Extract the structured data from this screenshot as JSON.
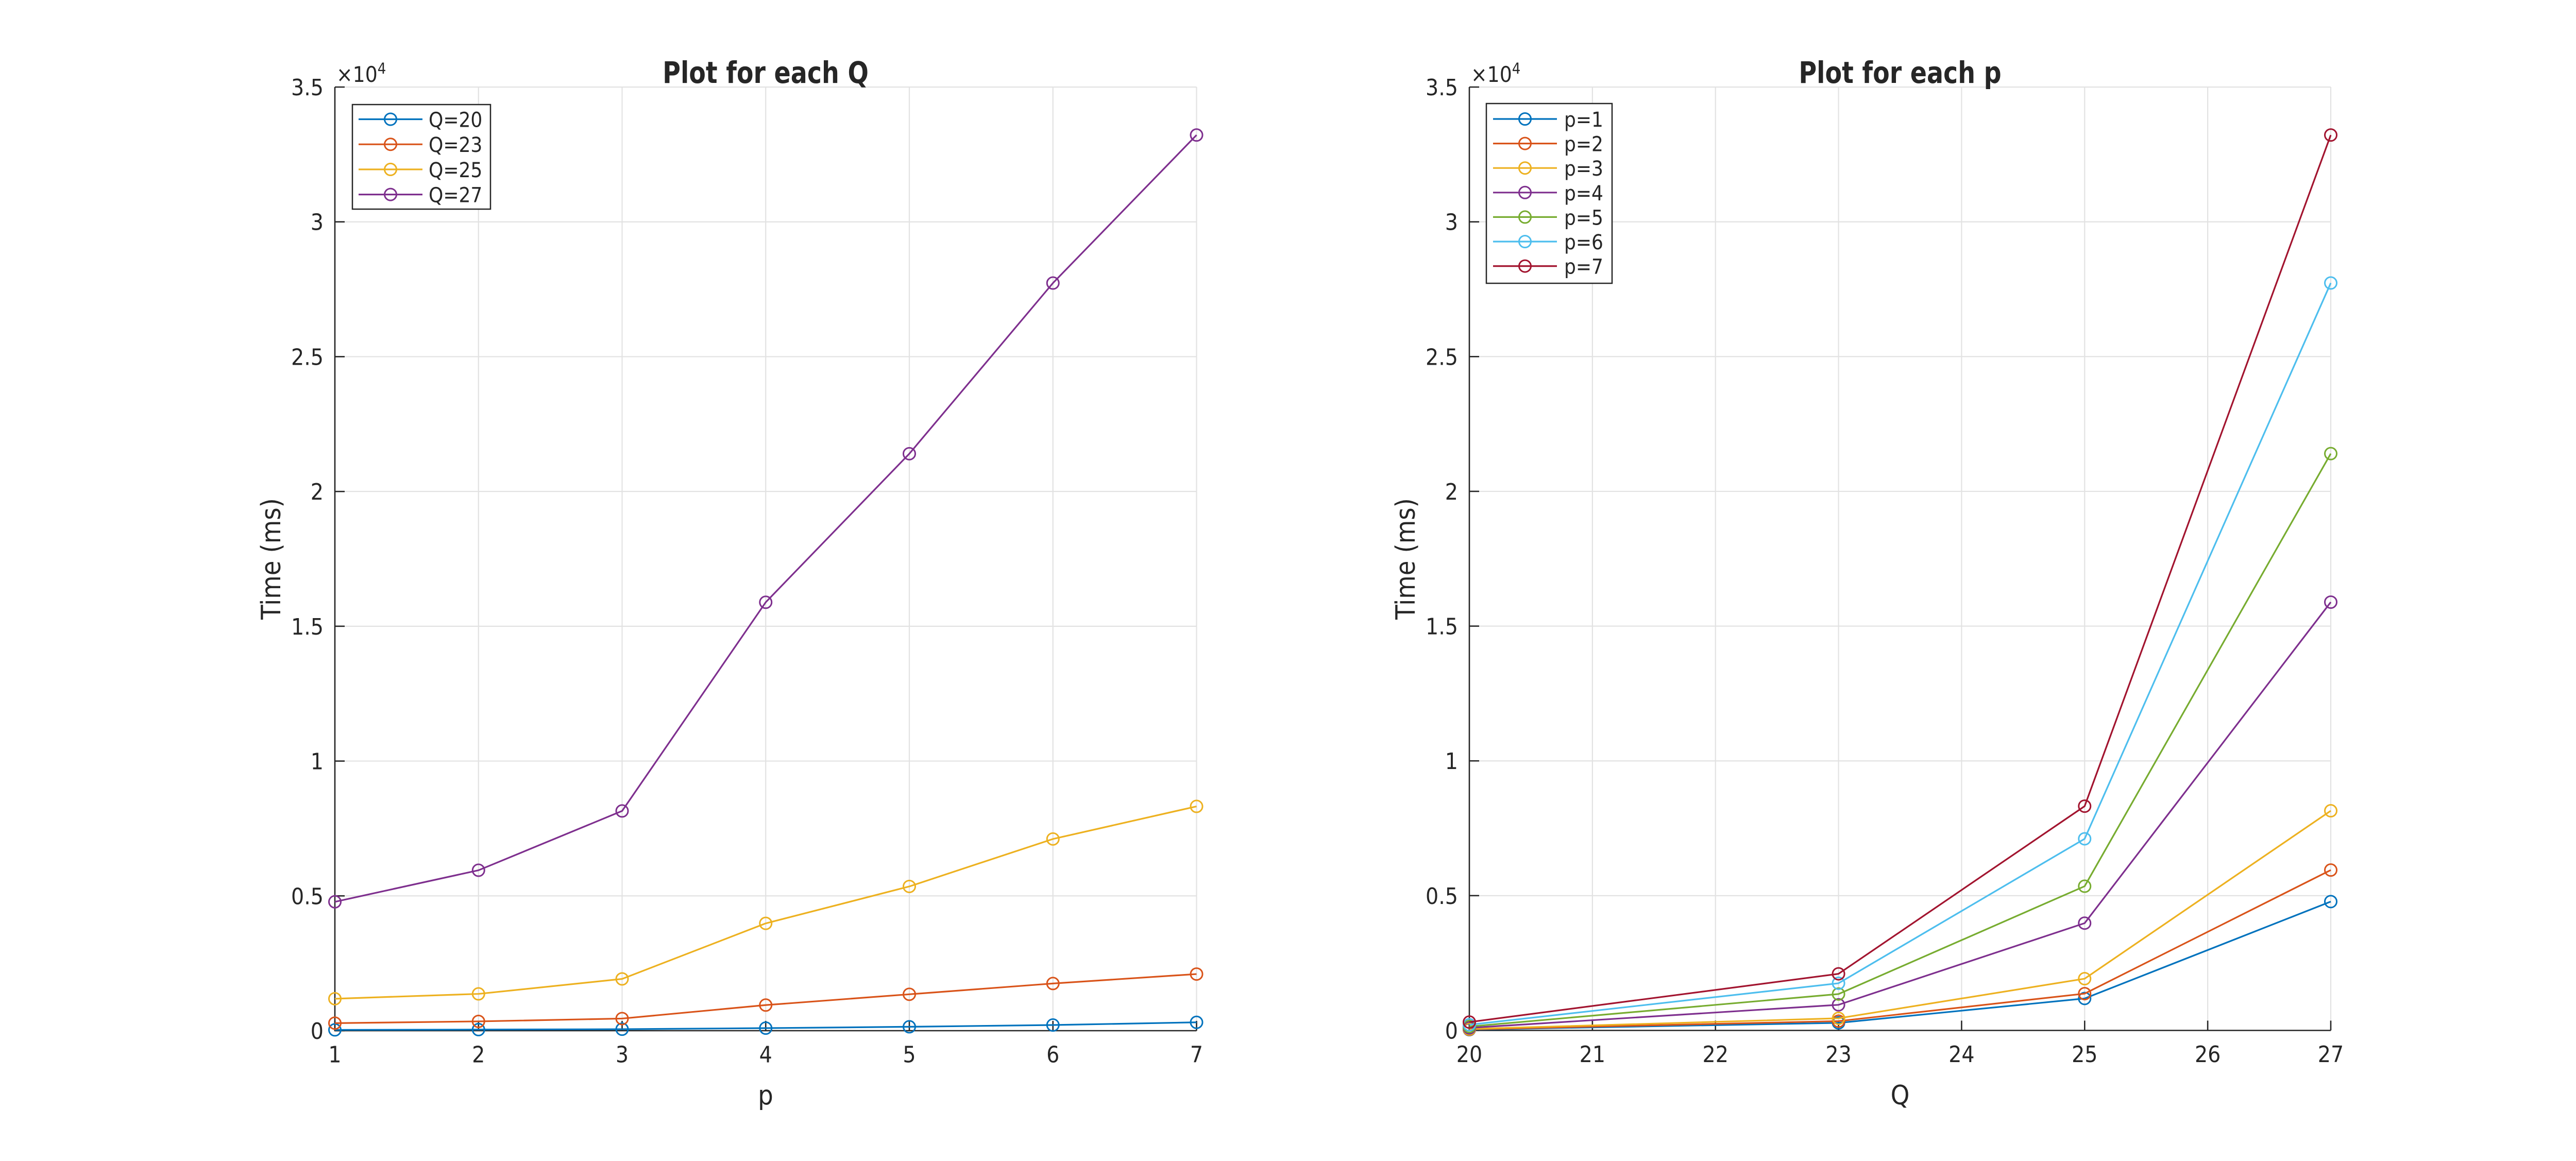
{
  "figure": {
    "background": "#ffffff",
    "axis_color": "#262626",
    "grid_color": "#e2e2e2",
    "tick_label_color": "#262626",
    "title_color": "#000000",
    "legend_border_color": "#262626",
    "legend_background": "#ffffff"
  },
  "chart_data": [
    {
      "type": "line",
      "title": "Plot for each Q",
      "xlabel": "p",
      "ylabel": "Time (ms)",
      "x": [
        1,
        2,
        3,
        4,
        5,
        6,
        7
      ],
      "xlim": [
        1,
        7
      ],
      "xticks": [
        1,
        2,
        3,
        4,
        5,
        6,
        7
      ],
      "xtick_labels": [
        "1",
        "2",
        "3",
        "4",
        "5",
        "6",
        "7"
      ],
      "ylim": [
        0,
        35000
      ],
      "yticks": [
        0,
        5000,
        10000,
        15000,
        20000,
        25000,
        30000,
        35000
      ],
      "ytick_labels": [
        "0",
        "0.5",
        "1",
        "1.5",
        "2",
        "2.5",
        "3",
        "3.5"
      ],
      "y_offset_text": {
        "base": "×10",
        "exponent": "4"
      },
      "grid": true,
      "legend_position": "upper-left",
      "marker": "circle",
      "series": [
        {
          "name": "Q=20",
          "color": "#0072BD",
          "values": [
            30,
            40,
            55,
            95,
            145,
            210,
            310
          ]
        },
        {
          "name": "Q=23",
          "color": "#D95319",
          "values": [
            280,
            345,
            450,
            950,
            1350,
            1750,
            2100
          ]
        },
        {
          "name": "Q=25",
          "color": "#EDB120",
          "values": [
            1185,
            1365,
            1920,
            3980,
            5350,
            7110,
            8320
          ]
        },
        {
          "name": "Q=27",
          "color": "#7E2F8E",
          "values": [
            4780,
            5950,
            8150,
            15890,
            21400,
            27730,
            33220
          ]
        }
      ]
    },
    {
      "type": "line",
      "title": "Plot for each p",
      "xlabel": "Q",
      "ylabel": "Time (ms)",
      "x": [
        20,
        23,
        25,
        27
      ],
      "xlim": [
        20,
        27
      ],
      "xticks": [
        20,
        21,
        22,
        23,
        24,
        25,
        26,
        27
      ],
      "xtick_labels": [
        "20",
        "21",
        "22",
        "23",
        "24",
        "25",
        "26",
        "27"
      ],
      "ylim": [
        0,
        35000
      ],
      "yticks": [
        0,
        5000,
        10000,
        15000,
        20000,
        25000,
        30000,
        35000
      ],
      "ytick_labels": [
        "0",
        "0.5",
        "1",
        "1.5",
        "2",
        "2.5",
        "3",
        "3.5"
      ],
      "y_offset_text": {
        "base": "×10",
        "exponent": "4"
      },
      "grid": true,
      "legend_position": "upper-left",
      "marker": "circle",
      "series": [
        {
          "name": "p=1",
          "color": "#0072BD",
          "values": [
            30,
            280,
            1185,
            4780
          ]
        },
        {
          "name": "p=2",
          "color": "#D95319",
          "values": [
            40,
            345,
            1365,
            5950
          ]
        },
        {
          "name": "p=3",
          "color": "#EDB120",
          "values": [
            55,
            450,
            1920,
            8150
          ]
        },
        {
          "name": "p=4",
          "color": "#7E2F8E",
          "values": [
            95,
            950,
            3980,
            15890
          ]
        },
        {
          "name": "p=5",
          "color": "#77AC30",
          "values": [
            145,
            1350,
            5350,
            21400
          ]
        },
        {
          "name": "p=6",
          "color": "#4DBEEE",
          "values": [
            210,
            1750,
            7110,
            27730
          ]
        },
        {
          "name": "p=7",
          "color": "#A2142F",
          "values": [
            310,
            2100,
            8320,
            33220
          ]
        }
      ]
    }
  ]
}
